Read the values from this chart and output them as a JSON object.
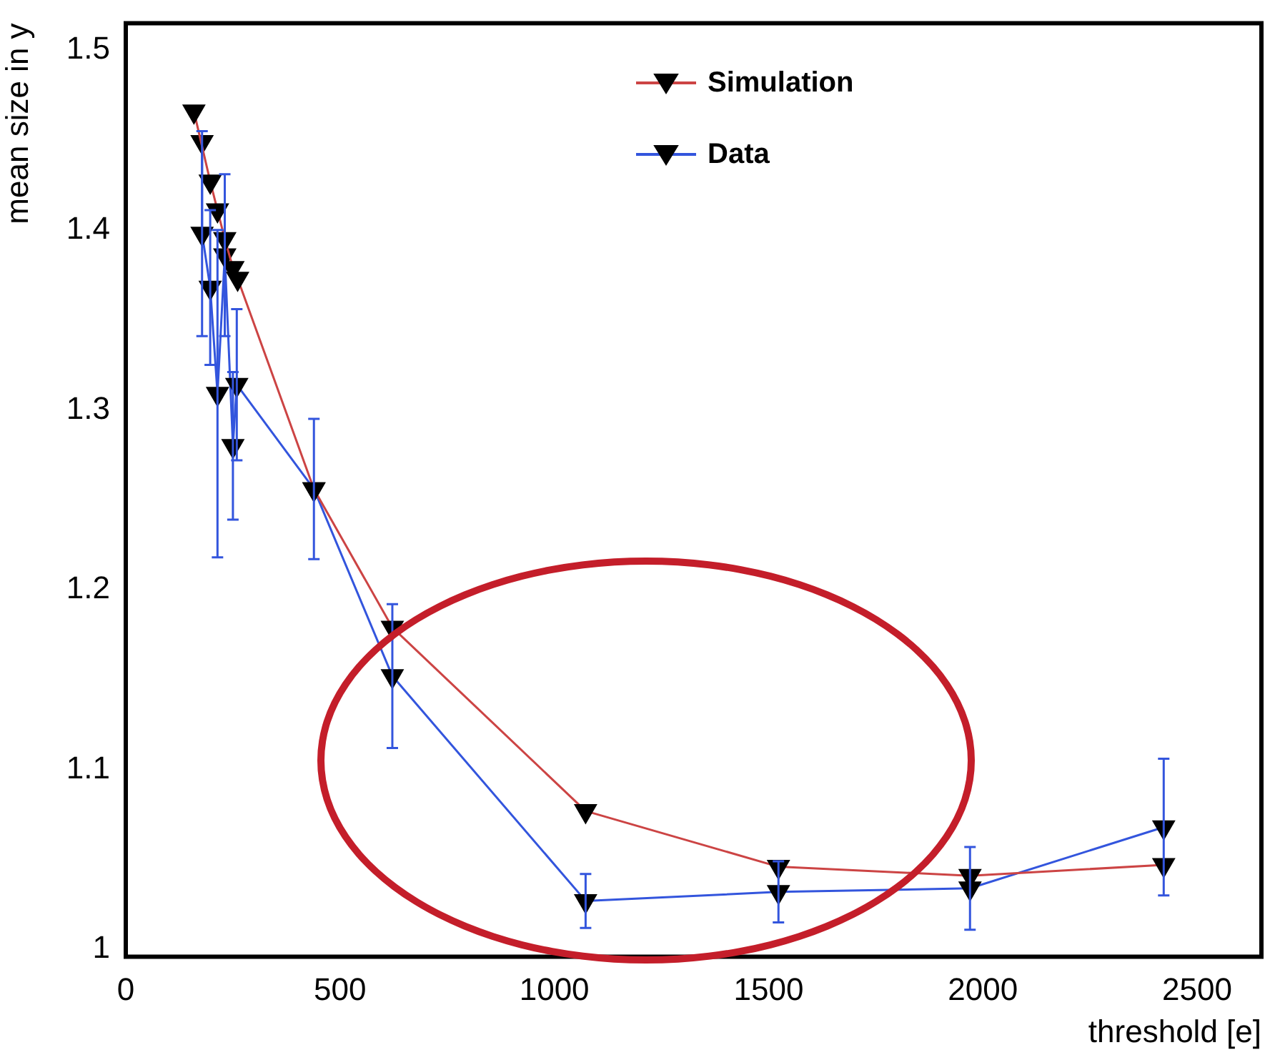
{
  "chart_data": {
    "type": "line",
    "xlabel": "threshold [e]",
    "ylabel": "mean size in y",
    "xlim": [
      0,
      2650
    ],
    "xticks": [
      0,
      500,
      1000,
      1500,
      2000,
      2500
    ],
    "ylim": [
      0.996,
      1.515
    ],
    "yticks": [
      1,
      1.1,
      1.2,
      1.3,
      1.4,
      1.5
    ],
    "grid": false,
    "legend": "top",
    "marker": "triangle",
    "line_style": "solid",
    "series": [
      {
        "name": "Simulation",
        "color": "#cc4444",
        "x": [
          159,
          197,
          214,
          231,
          250,
          261,
          439,
          622,
          1073,
          1523,
          1970,
          2422
        ],
        "values": [
          1.466,
          1.427,
          1.411,
          1.395,
          1.379,
          1.373,
          1.256,
          1.179,
          1.077,
          1.046,
          1.041,
          1.047
        ]
      },
      {
        "name": "Data",
        "color": "#3355dd",
        "x": [
          178,
          178,
          197,
          214,
          231,
          250,
          259,
          439,
          622,
          1073,
          1523,
          1970,
          2422
        ],
        "values": [
          1.449,
          1.398,
          1.368,
          1.309,
          1.386,
          1.28,
          1.314,
          1.256,
          1.152,
          1.027,
          1.032,
          1.034,
          1.068
        ],
        "errors": [
          null,
          0.057,
          0.043,
          0.091,
          0.045,
          0.041,
          0.042,
          0.039,
          0.04,
          0.015,
          0.017,
          0.023,
          0.038
        ]
      }
    ]
  }
}
